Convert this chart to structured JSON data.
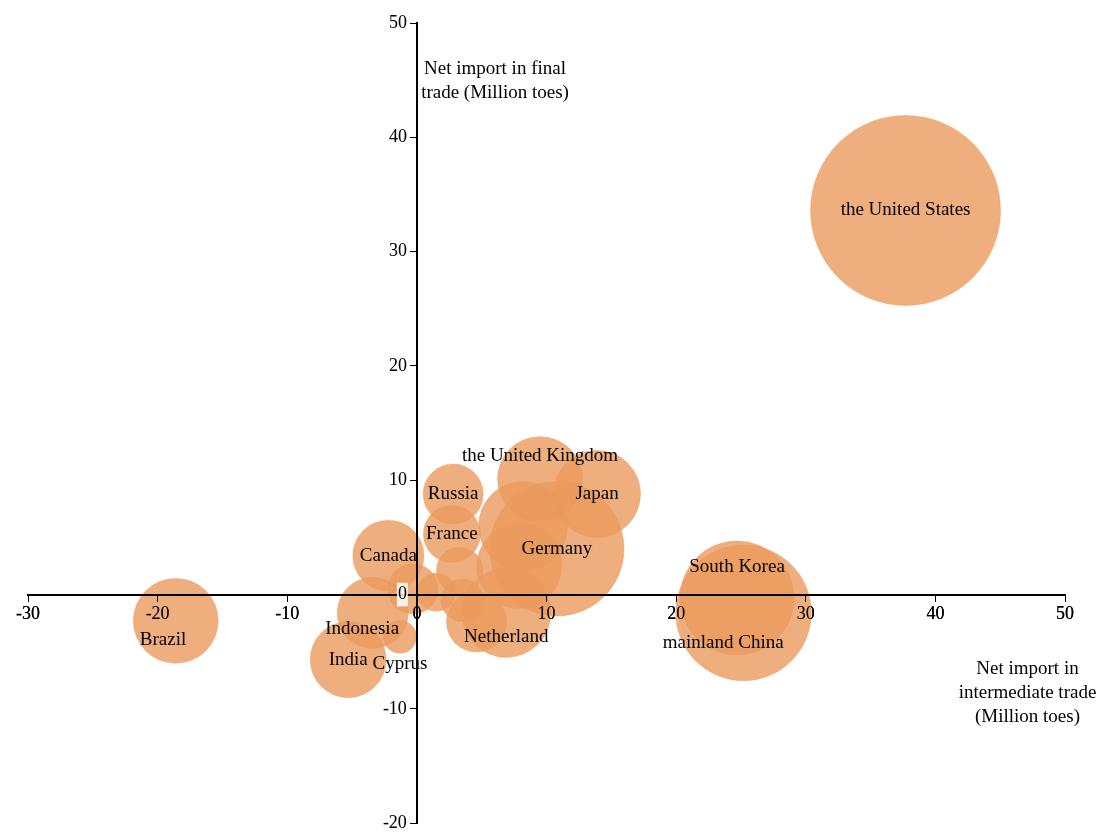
{
  "chart_data": {
    "type": "bubble",
    "xlabel": "Net import in intermediate trade (Million toes)",
    "ylabel": "Net import in final trade (Million toes)",
    "xlim": [
      -30,
      50
    ],
    "xticks": [
      -30,
      -20,
      -10,
      0,
      10,
      20,
      30,
      40,
      50
    ],
    "ylim": [
      -20,
      50
    ],
    "yticks": [
      -20,
      -10,
      0,
      10,
      20,
      30,
      40,
      50
    ],
    "grid": false,
    "legend": false,
    "series": [
      {
        "name": "the United States",
        "color": "#eb9a5c",
        "x": [
          37.7
        ],
        "values": [
          33.6
        ],
        "sizes": [
          1
        ]
      },
      {
        "name": "mainland China",
        "color": "#eb9a5c",
        "x": [
          25.2
        ],
        "values": [
          -1.6
        ],
        "sizes": [
          0.51
        ]
      },
      {
        "name": "South Korea",
        "color": "#eb9a5c",
        "x": [
          24.7
        ],
        "values": [
          -0.3
        ],
        "sizes": [
          0.36
        ]
      },
      {
        "name": "Brazil",
        "color": "#eb9a5c",
        "x": [
          -18.6
        ],
        "values": [
          -2.3
        ],
        "sizes": [
          0.2
        ]
      },
      {
        "name": "India",
        "color": "#eb9a5c",
        "x": [
          -5.3
        ],
        "values": [
          -5.7
        ],
        "sizes": [
          0.16
        ]
      },
      {
        "name": "Indonesia",
        "color": "#eb9a5c",
        "x": [
          -3.4
        ],
        "values": [
          -1.6
        ],
        "sizes": [
          0.14
        ]
      },
      {
        "name": "Canada",
        "color": "#eb9a5c",
        "x": [
          -2.2
        ],
        "values": [
          3.4
        ],
        "sizes": [
          0.14
        ]
      },
      {
        "name": "Cyprus",
        "color": "#eb9a5c",
        "x": [
          -1.3
        ],
        "values": [
          -3.7
        ],
        "sizes": [
          0.03
        ]
      },
      {
        "name": "Russia",
        "color": "#eb9a5c",
        "x": [
          2.8
        ],
        "values": [
          8.8
        ],
        "sizes": [
          0.1
        ]
      },
      {
        "name": "France",
        "color": "#eb9a5c",
        "x": [
          2.7
        ],
        "values": [
          5.3
        ],
        "sizes": [
          0.09
        ]
      },
      {
        "color": "#eb9a5c",
        "x": [
          -0.3
        ],
        "values": [
          0.5
        ],
        "sizes": [
          0.07
        ]
      },
      {
        "color": "#eb9a5c",
        "x": [
          1.5
        ],
        "values": [
          0.2
        ],
        "sizes": [
          0.04
        ]
      },
      {
        "color": "#eb9a5c",
        "x": [
          3.3
        ],
        "values": [
          2.1
        ],
        "sizes": [
          0.06
        ]
      },
      {
        "color": "#eb9a5c",
        "x": [
          3.5
        ],
        "values": [
          -0.5
        ],
        "sizes": [
          0.05
        ]
      },
      {
        "color": "#eb9a5c",
        "x": [
          4.6
        ],
        "values": [
          -2.4
        ],
        "sizes": [
          0.1
        ]
      },
      {
        "name": "Netherland",
        "color": "#eb9a5c",
        "x": [
          6.9
        ],
        "values": [
          -1.6
        ],
        "sizes": [
          0.22
        ]
      },
      {
        "color": "#eb9a5c",
        "x": [
          7.9
        ],
        "values": [
          2.5
        ],
        "sizes": [
          0.2
        ]
      },
      {
        "color": "#eb9a5c",
        "x": [
          8.2
        ],
        "values": [
          6.0
        ],
        "sizes": [
          0.22
        ]
      },
      {
        "name": "Germany",
        "color": "#eb9a5c",
        "x": [
          10.8
        ],
        "values": [
          4.0
        ],
        "sizes": [
          0.5
        ]
      },
      {
        "name": "the United Kingdom",
        "color": "#eb9a5c",
        "x": [
          9.5
        ],
        "values": [
          10.1
        ],
        "sizes": [
          0.2
        ]
      },
      {
        "name": "Japan",
        "color": "#eb9a5c",
        "x": [
          13.9
        ],
        "values": [
          8.8
        ],
        "sizes": [
          0.21
        ]
      }
    ]
  }
}
